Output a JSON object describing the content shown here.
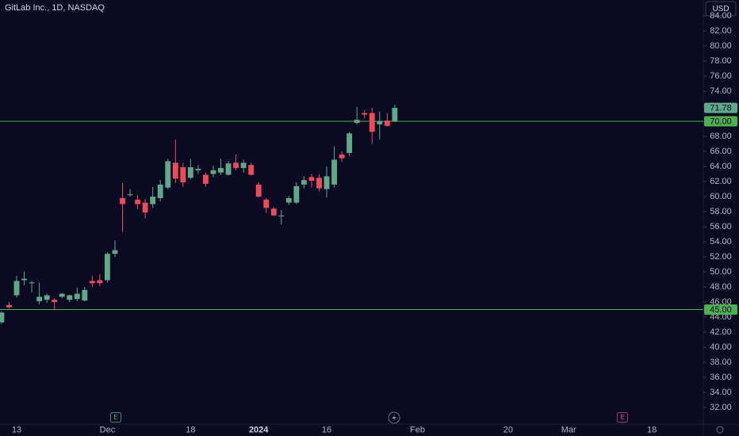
{
  "chart_data": {
    "type": "candlestick",
    "title": "GitLab Inc., 1D, NASDAQ",
    "currency": "USD",
    "categories": [
      null,
      null,
      "13",
      null,
      null,
      null,
      null,
      null,
      null,
      null,
      null,
      null,
      null,
      null,
      "Dec",
      null,
      null,
      null,
      null,
      null,
      null,
      null,
      null,
      null,
      null,
      "18",
      null,
      null,
      null,
      null,
      null,
      null,
      null,
      null,
      "2024",
      null,
      null,
      null,
      null,
      null,
      null,
      null,
      null,
      "16",
      null,
      null,
      null,
      null,
      null,
      null,
      null,
      null,
      null,
      null,
      null,
      "Feb",
      null,
      null,
      null,
      null,
      null,
      null,
      null,
      null,
      null,
      null,
      null,
      "20",
      null,
      null,
      null,
      null,
      null,
      null,
      null,
      "Mar",
      null,
      null,
      null,
      null,
      null,
      null,
      null,
      null,
      null,
      null,
      "18",
      null,
      null,
      null,
      null,
      null,
      null
    ],
    "open": [
      43.3,
      45.6,
      46.9,
      48.9,
      48.5,
      46.1,
      46.3,
      46.3,
      46.7,
      46.3,
      46.4,
      46.2,
      48.8,
      48.9,
      48.9,
      52.4,
      59.8,
      60.2,
      59.6,
      59.2,
      59.0,
      59.8,
      61.2,
      64.5,
      63.9,
      62.5,
      63.5,
      62.9,
      63.0,
      63.2,
      62.9,
      64.5,
      63.8,
      64.2,
      61.6,
      59.6,
      58.4,
      57.4,
      59.2,
      59.2,
      61.6,
      62.6,
      62.5,
      61.0,
      61.6,
      65.6,
      65.8,
      69.8,
      71.1,
      71.1,
      69.6,
      70.1,
      70.0,
      null,
      null,
      null,
      null,
      null,
      null,
      null,
      null,
      null,
      null,
      null,
      null,
      null,
      null,
      null,
      null,
      null,
      null,
      null,
      null,
      null,
      null,
      null,
      null,
      null,
      null,
      null,
      null,
      null,
      null,
      null,
      null,
      null,
      null,
      null,
      null,
      null,
      null,
      null,
      null
    ],
    "high": [
      44.8,
      46.0,
      49.5,
      50.0,
      48.8,
      48.6,
      47.1,
      46.5,
      47.2,
      47.0,
      47.9,
      48.0,
      49.5,
      49.7,
      52.6,
      54.2,
      61.8,
      61.0,
      60.2,
      59.7,
      61.3,
      62.2,
      65.0,
      67.6,
      64.5,
      65.0,
      64.2,
      63.2,
      64.1,
      65.0,
      64.7,
      65.6,
      64.9,
      64.5,
      61.9,
      59.8,
      58.6,
      58.2,
      60.1,
      61.9,
      62.7,
      63.0,
      63.0,
      64.0,
      66.7,
      66.0,
      68.6,
      71.9,
      71.5,
      71.8,
      71.3,
      71.1,
      72.2,
      null,
      null,
      null,
      null,
      null,
      null,
      null,
      null,
      null,
      null,
      null,
      null,
      null,
      null,
      null,
      null,
      null,
      null,
      null,
      null,
      null,
      null,
      null,
      null,
      null,
      null,
      null,
      null,
      null,
      null,
      null,
      null,
      null,
      null,
      null,
      null,
      null,
      null,
      null,
      null
    ],
    "low": [
      43.1,
      45.1,
      46.6,
      48.2,
      47.3,
      45.7,
      45.9,
      44.9,
      46.5,
      46.0,
      46.1,
      46.1,
      48.0,
      48.1,
      48.6,
      52.0,
      55.3,
      60.0,
      58.3,
      57.1,
      58.5,
      59.4,
      61.0,
      61.8,
      61.3,
      62.3,
      63.0,
      61.3,
      62.6,
      62.9,
      62.8,
      63.5,
      63.2,
      62.8,
      59.9,
      57.8,
      57.4,
      56.3,
      58.9,
      59.0,
      61.1,
      61.2,
      60.7,
      59.9,
      61.2,
      64.6,
      65.4,
      69.6,
      70.4,
      67.0,
      67.6,
      69.3,
      69.9,
      null,
      null,
      null,
      null,
      null,
      null,
      null,
      null,
      null,
      null,
      null,
      null,
      null,
      null,
      null,
      null,
      null,
      null,
      null,
      null,
      null,
      null,
      null,
      null,
      null,
      null,
      null,
      null,
      null,
      null,
      null,
      null,
      null,
      null,
      null,
      null,
      null,
      null,
      null,
      null
    ],
    "close": [
      44.6,
      45.3,
      48.8,
      49.1,
      48.6,
      46.7,
      46.9,
      46.0,
      47.1,
      46.9,
      47.1,
      47.6,
      48.5,
      48.5,
      52.4,
      52.9,
      59.0,
      60.3,
      59.0,
      57.9,
      60.0,
      61.6,
      64.7,
      62.4,
      61.9,
      63.9,
      63.7,
      61.7,
      63.5,
      63.8,
      64.4,
      63.8,
      64.5,
      62.9,
      60.0,
      58.5,
      57.5,
      57.5,
      59.8,
      61.4,
      62.2,
      62.1,
      61.1,
      62.7,
      64.9,
      65.1,
      68.4,
      70.2,
      70.9,
      68.6,
      70.0,
      69.4,
      71.78,
      null,
      null,
      null,
      null,
      null,
      null,
      null,
      null,
      null,
      null,
      null,
      null,
      null,
      null,
      null,
      null,
      null,
      null,
      null,
      null,
      null,
      null,
      null,
      null,
      null,
      null,
      null,
      null,
      null,
      null,
      null,
      null,
      null,
      null,
      null,
      null,
      null,
      null,
      null,
      null
    ],
    "up_color": "#5fa88a",
    "down_color": "#f0495a",
    "ylim": [
      29.79,
      86.11
    ],
    "yticks": [
      {
        "value": 32,
        "label": "32.00"
      },
      {
        "value": 34,
        "label": "34.00"
      },
      {
        "value": 36,
        "label": "36.00"
      },
      {
        "value": 38,
        "label": "38.00"
      },
      {
        "value": 40,
        "label": "40.00"
      },
      {
        "value": 42,
        "label": "42.00"
      },
      {
        "value": 44,
        "label": "44.00"
      },
      {
        "value": 46,
        "label": "46.00"
      },
      {
        "value": 48,
        "label": "48.00"
      },
      {
        "value": 50,
        "label": "50.00"
      },
      {
        "value": 52,
        "label": "52.00"
      },
      {
        "value": 54,
        "label": "54.00"
      },
      {
        "value": 56,
        "label": "56.00"
      },
      {
        "value": 58,
        "label": "58.00"
      },
      {
        "value": 60,
        "label": "60.00"
      },
      {
        "value": 62,
        "label": "62.00"
      },
      {
        "value": 64,
        "label": "64.00"
      },
      {
        "value": 66,
        "label": "66.00"
      },
      {
        "value": 68,
        "label": "68.00"
      },
      {
        "value": 70,
        "label": "70.00"
      },
      {
        "value": 72,
        "label": "72.00"
      },
      {
        "value": 74,
        "label": "74.00"
      },
      {
        "value": 76,
        "label": "76.00"
      },
      {
        "value": 78,
        "label": "78.00"
      },
      {
        "value": 80,
        "label": "80.00"
      },
      {
        "value": 82,
        "label": "82.00"
      },
      {
        "value": 84,
        "label": "84.00"
      }
    ],
    "hlines": [
      {
        "value": 70,
        "label": "70.00"
      },
      {
        "value": 45,
        "label": "45.00"
      }
    ],
    "hline_color": "#4caf50",
    "events": [
      "E",
      "E"
    ],
    "grid": false
  }
}
